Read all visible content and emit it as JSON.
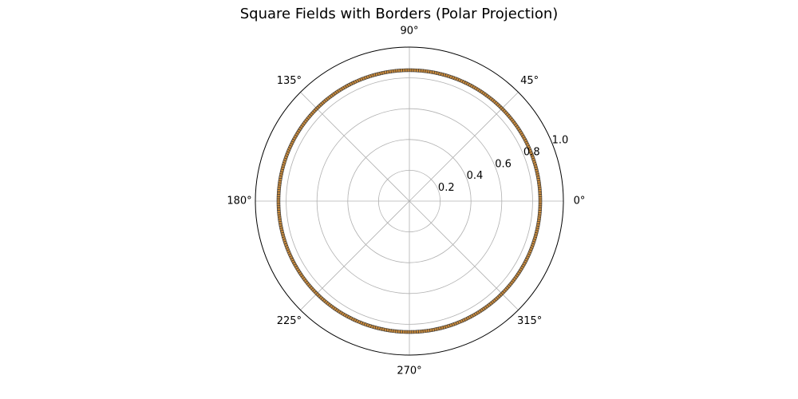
{
  "chart_data": {
    "type": "polar-bar",
    "title": "Square Fields with Borders (Polar Projection)",
    "rlim": [
      0,
      1.0
    ],
    "r_ticks": [
      "0.2",
      "0.4",
      "0.6",
      "0.8",
      "1.0"
    ],
    "theta_ticks": [
      "0°",
      "45°",
      "90°",
      "135°",
      "180°",
      "225°",
      "270°",
      "315°"
    ],
    "grid": true,
    "bar_count": 360,
    "bar_r_inner": 0.84,
    "bar_r_outer": 0.86,
    "bar_fill": "#c8893a",
    "bar_edge": "#3a3a3a"
  }
}
